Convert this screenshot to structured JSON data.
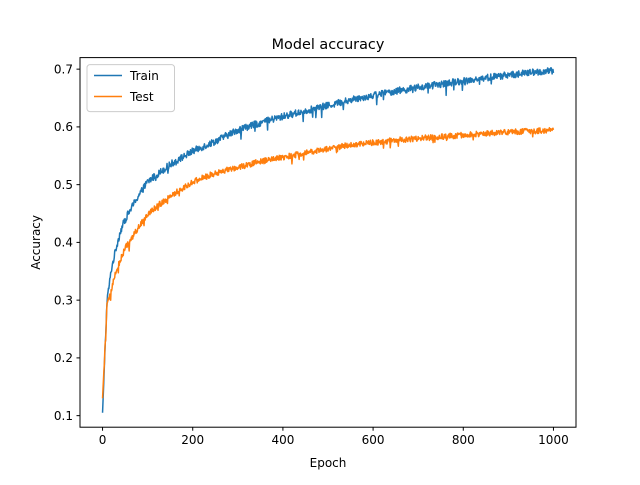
{
  "chart_data": {
    "type": "line",
    "title": "Model accuracy",
    "xlabel": "Epoch",
    "ylabel": "Accuracy",
    "xlim": [
      -50,
      1050
    ],
    "ylim": [
      0.08,
      0.72
    ],
    "xticks": [
      0,
      200,
      400,
      600,
      800,
      1000
    ],
    "yticks": [
      0.1,
      0.2,
      0.3,
      0.4,
      0.5,
      0.6,
      0.7
    ],
    "xtick_labels": [
      "0",
      "200",
      "400",
      "600",
      "800",
      "1000"
    ],
    "ytick_labels": [
      "0.1",
      "0.2",
      "0.3",
      "0.4",
      "0.5",
      "0.6",
      "0.7"
    ],
    "grid": false,
    "legend_position": "upper-left",
    "x": [
      0,
      10,
      20,
      30,
      40,
      50,
      75,
      100,
      150,
      200,
      250,
      300,
      350,
      400,
      450,
      500,
      550,
      600,
      650,
      700,
      750,
      800,
      850,
      900,
      950,
      1000
    ],
    "series": [
      {
        "name": "Train",
        "color": "#1f77b4",
        "noise": 0.006,
        "values": [
          0.105,
          0.3,
          0.355,
          0.39,
          0.42,
          0.44,
          0.475,
          0.505,
          0.535,
          0.558,
          0.575,
          0.595,
          0.607,
          0.618,
          0.628,
          0.637,
          0.647,
          0.655,
          0.662,
          0.668,
          0.674,
          0.68,
          0.685,
          0.69,
          0.694,
          0.697
        ]
      },
      {
        "name": "Test",
        "color": "#ff7f0e",
        "noise": 0.005,
        "values": [
          0.13,
          0.29,
          0.32,
          0.35,
          0.37,
          0.39,
          0.42,
          0.45,
          0.48,
          0.505,
          0.52,
          0.53,
          0.54,
          0.547,
          0.555,
          0.562,
          0.569,
          0.573,
          0.577,
          0.58,
          0.583,
          0.586,
          0.589,
          0.591,
          0.593,
          0.594
        ]
      }
    ]
  }
}
